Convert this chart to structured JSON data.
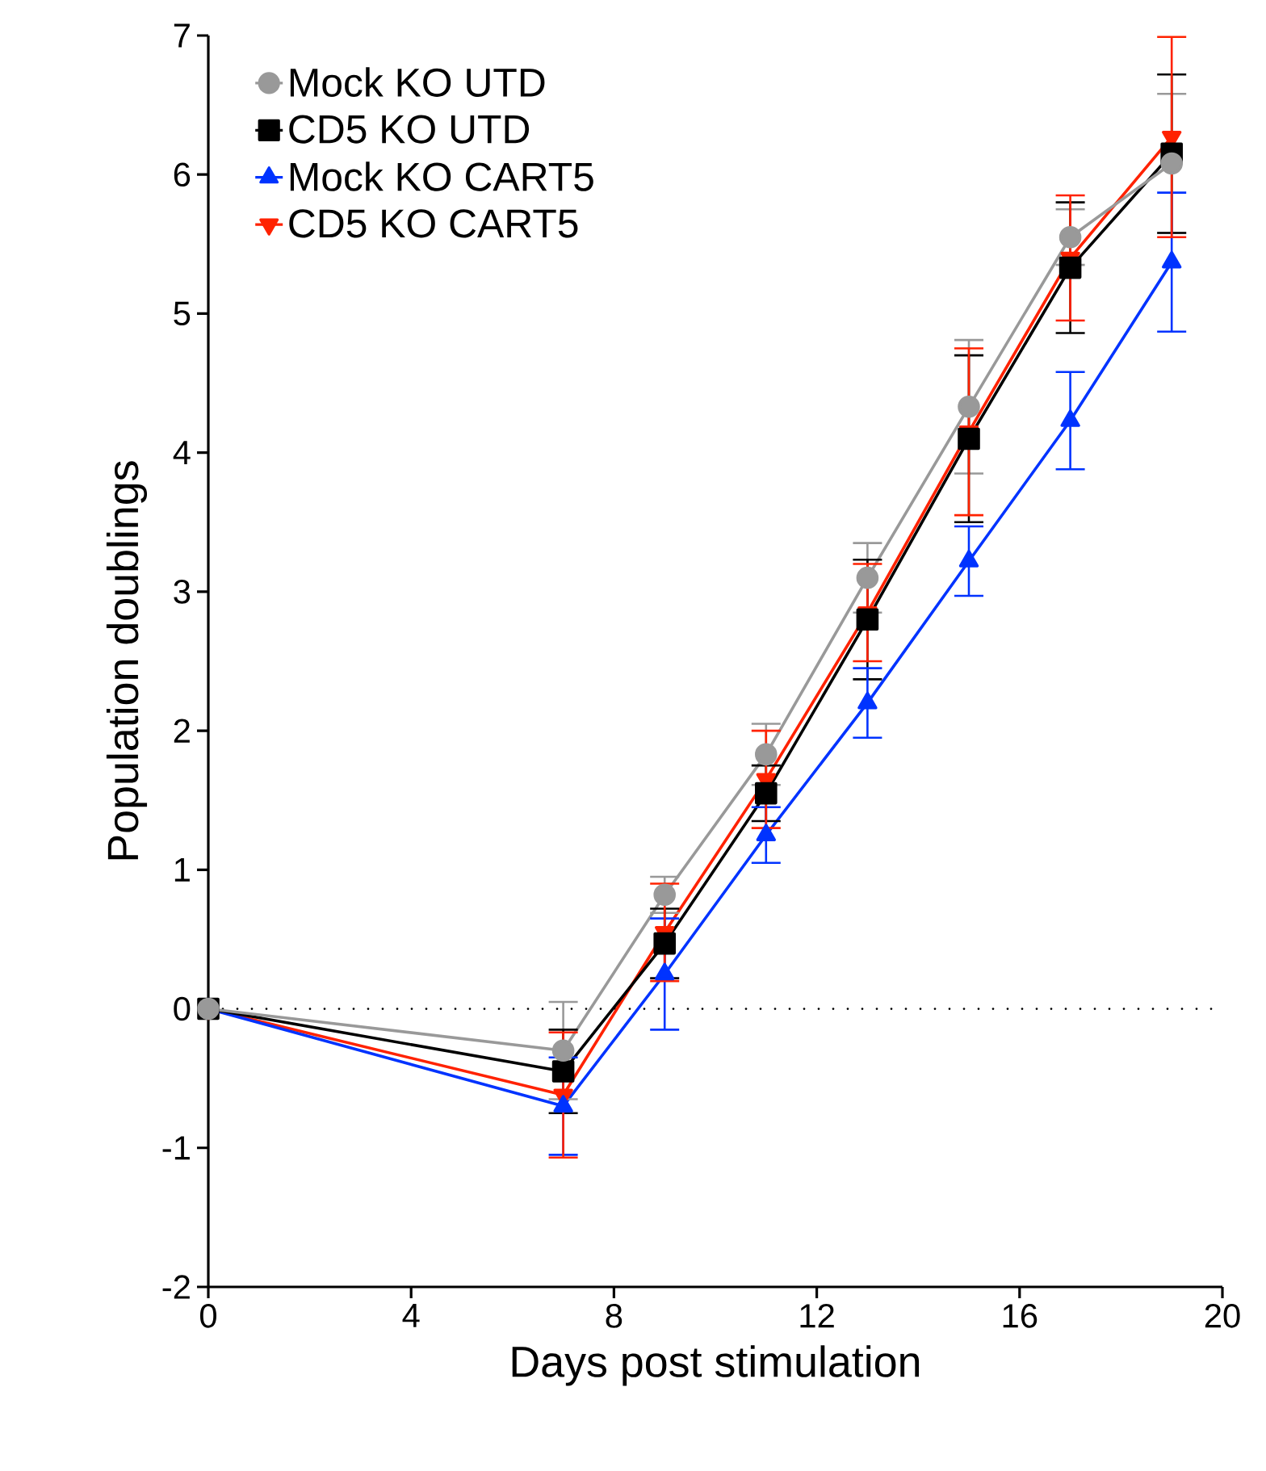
{
  "chart_data": {
    "type": "line",
    "xlabel": "Days post stimulation",
    "ylabel": "Population doublings",
    "x": [
      0,
      7,
      9,
      11,
      13,
      15,
      17,
      19
    ],
    "series": [
      {
        "name": "Mock KO UTD",
        "color": "#999999",
        "marker": "circle",
        "values": [
          0,
          -0.3,
          0.82,
          1.83,
          3.1,
          4.33,
          5.55,
          6.08
        ],
        "errors": [
          null,
          0.35,
          0.13,
          0.22,
          0.25,
          0.48,
          0.2,
          0.5
        ]
      },
      {
        "name": "CD5 KO UTD",
        "color": "#000000",
        "marker": "square",
        "values": [
          0,
          -0.45,
          0.47,
          1.55,
          2.8,
          4.1,
          5.33,
          6.15
        ],
        "errors": [
          null,
          0.3,
          0.25,
          0.2,
          0.43,
          0.6,
          0.47,
          0.57
        ]
      },
      {
        "name": "Mock KO CART5",
        "color": "#0033ff",
        "marker": "triangle",
        "values": [
          0,
          -0.7,
          0.25,
          1.25,
          2.2,
          3.22,
          4.23,
          5.37
        ],
        "errors": [
          null,
          0.35,
          0.4,
          0.2,
          0.25,
          0.25,
          0.35,
          0.5
        ]
      },
      {
        "name": "CD5 KO CART5",
        "color": "#ff2200",
        "marker": "triangle-down",
        "values": [
          0,
          -0.62,
          0.55,
          1.65,
          2.85,
          4.15,
          5.4,
          6.27
        ],
        "errors": [
          null,
          0.45,
          0.35,
          0.35,
          0.35,
          0.6,
          0.45,
          0.72
        ]
      }
    ],
    "xlim": [
      0,
      20
    ],
    "xticks": [
      0,
      4,
      8,
      12,
      16,
      20
    ],
    "ylim": [
      -2,
      7
    ],
    "yticks": [
      -2,
      -1,
      0,
      1,
      2,
      3,
      4,
      5,
      6,
      7
    ],
    "ref_lines": [
      {
        "axis": "y",
        "value": 0,
        "line_style": "dotted",
        "color": "#000000"
      }
    ],
    "legend": "top left",
    "grid": false,
    "line_style": "solid"
  }
}
